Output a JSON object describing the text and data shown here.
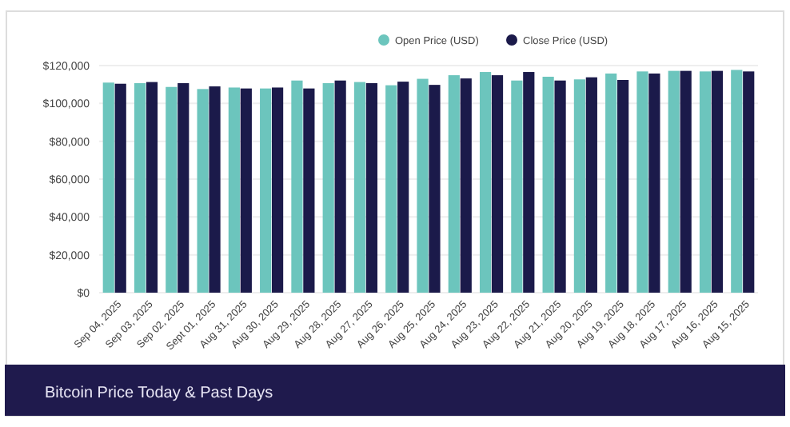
{
  "chart_data": {
    "type": "bar",
    "title": "Bitcoin Price Today & Past Days",
    "categories": [
      "Sep 04, 2025",
      "Sep 03, 2025",
      "Sep 02, 2025",
      "Sept 01, 2025",
      "Aug 31, 2025",
      "Aug 30, 2025",
      "Aug 29, 2025",
      "Aug 28, 2025",
      "Aug 27, 2025",
      "Aug 26, 2025",
      "Aug 25, 2025",
      "Aug 24, 2025",
      "Aug 23, 2025",
      "Aug 22, 2025",
      "Aug 21, 2025",
      "Aug 20, 2025",
      "Aug 19, 2025",
      "Aug 18, 2025",
      "Aug 17, 2025",
      "Aug 16, 2025",
      "Aug 15, 2025"
    ],
    "series": [
      {
        "name": "Open Price (USD)",
        "color": "#6cc5bd",
        "values": [
          111000,
          110700,
          108700,
          107600,
          108400,
          107900,
          112100,
          110700,
          111300,
          109600,
          113000,
          114900,
          116600,
          112100,
          114100,
          112700,
          115800,
          116900,
          117200,
          116900,
          117700
        ]
      },
      {
        "name": "Close Price (USD)",
        "color": "#1b1a4a",
        "values": [
          110400,
          111300,
          110700,
          109000,
          107900,
          108400,
          107900,
          112100,
          110700,
          111500,
          109800,
          113200,
          114900,
          116600,
          112100,
          113800,
          112400,
          115800,
          117200,
          117200,
          116900
        ]
      }
    ],
    "ylim": [
      0,
      120000
    ],
    "yticks": [
      {
        "value": 0,
        "label": "$0"
      },
      {
        "value": 20000,
        "label": "$20,000"
      },
      {
        "value": 40000,
        "label": "$40,000"
      },
      {
        "value": 60000,
        "label": "$60,000"
      },
      {
        "value": 80000,
        "label": "$80,000"
      },
      {
        "value": 100000,
        "label": "$100,000"
      },
      {
        "value": 120000,
        "label": "$120,000"
      }
    ],
    "grid": "y",
    "legend": "top"
  }
}
